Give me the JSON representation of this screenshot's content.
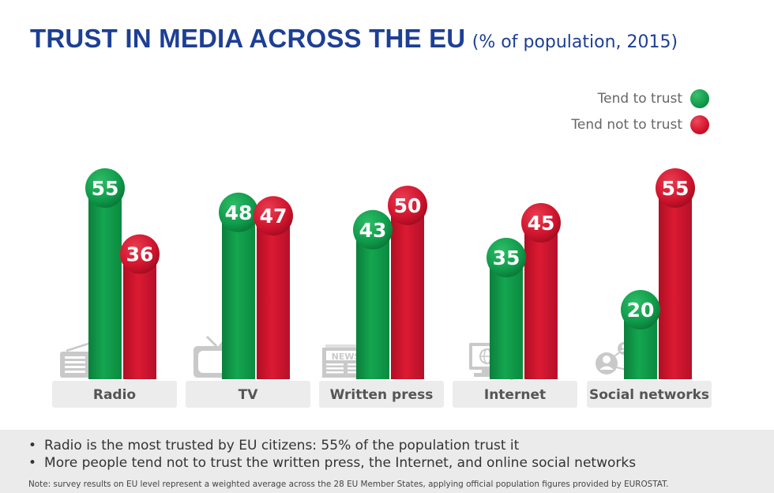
{
  "header": {
    "title": "TRUST IN MEDIA ACROSS THE EU",
    "subtitle": "(% of population, 2015)"
  },
  "legend": [
    {
      "label": "Tend to trust",
      "color": "#0f9a4a"
    },
    {
      "label": "Tend not to trust",
      "color": "#d0142c"
    }
  ],
  "chart_data": {
    "type": "bar",
    "title": "TRUST IN MEDIA ACROSS THE EU (% of population, 2015)",
    "categories": [
      "Radio",
      "TV",
      "Written press",
      "Internet",
      "Social networks"
    ],
    "icons": [
      "radio-icon",
      "tv-icon",
      "newspaper-icon",
      "computer-icon",
      "social-network-icon"
    ],
    "series": [
      {
        "name": "Tend to trust",
        "color": "#0f9a4a",
        "values": [
          55,
          48,
          43,
          35,
          20
        ]
      },
      {
        "name": "Tend not to trust",
        "color": "#d0142c",
        "values": [
          36,
          47,
          50,
          45,
          55
        ]
      }
    ],
    "ylim": [
      0,
      60
    ],
    "xlabel": "",
    "ylabel": "",
    "grid": false,
    "legend_position": "top-right"
  },
  "footer": {
    "bullets": [
      "Radio is the most trusted by EU citizens: 55% of the population trust it",
      "More people tend not to trust the written press, the Internet, and online social networks"
    ],
    "note": "Note: survey results on EU level represent a weighted average across the 28 EU Member States, applying official population figures provided by EUROSTAT."
  }
}
